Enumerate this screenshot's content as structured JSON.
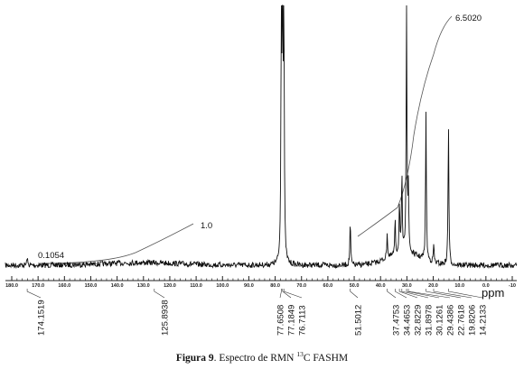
{
  "chart_data": {
    "type": "line",
    "xlabel": "ppm",
    "x_axis": {
      "reversed": true,
      "range": [
        185,
        -10
      ],
      "tick_labels": [
        "180.0",
        "170.0",
        "160.0",
        "150.0",
        "140.0",
        "130.0",
        "120.0",
        "110.0",
        "100.0",
        "90.0",
        "80.0",
        "70.0",
        "60.0",
        "50.0",
        "40.0",
        "30.0",
        "20.0",
        "10.0",
        "0.0",
        "-10"
      ]
    },
    "peaks": [
      {
        "shift": 174.1519,
        "label": "174.1519",
        "height": 0.03
      },
      {
        "shift": 125.8938,
        "label": "125.8938",
        "height": 0.0
      },
      {
        "shift": 77.6508,
        "label": "77.6508",
        "height": 1.0
      },
      {
        "shift": 77.1849,
        "label": "77.1849",
        "height": 1.0
      },
      {
        "shift": 76.7113,
        "label": "76.7113",
        "height": 1.0
      },
      {
        "shift": 51.5012,
        "label": "51.5012",
        "height": 0.17
      },
      {
        "shift": 37.4753,
        "label": "37.4753",
        "height": 0.1
      },
      {
        "shift": 34.4653,
        "label": "34.4653",
        "height": 0.13
      },
      {
        "shift": 32.8229,
        "label": "32.8229",
        "height": 0.2
      },
      {
        "shift": 31.8978,
        "label": "31.8978",
        "height": 0.3
      },
      {
        "shift": 30.1261,
        "label": "30.1261",
        "height": 0.97
      },
      {
        "shift": 29.4386,
        "label": "29.4386",
        "height": 0.23
      },
      {
        "shift": 22.7618,
        "label": "22.7618",
        "height": 0.57
      },
      {
        "shift": 19.8206,
        "label": "19.8206",
        "height": 0.07
      },
      {
        "shift": 14.2133,
        "label": "14.2133",
        "height": 0.55
      }
    ],
    "integrals": [
      {
        "label": "0.1054"
      },
      {
        "label": "1.0"
      },
      {
        "label": "6.5020"
      }
    ]
  },
  "caption": {
    "prefix": "Figura 9",
    "text_before_sup": ". Espectro de RMN ",
    "sup": "13",
    "text_after_sup": "C FASHM"
  }
}
